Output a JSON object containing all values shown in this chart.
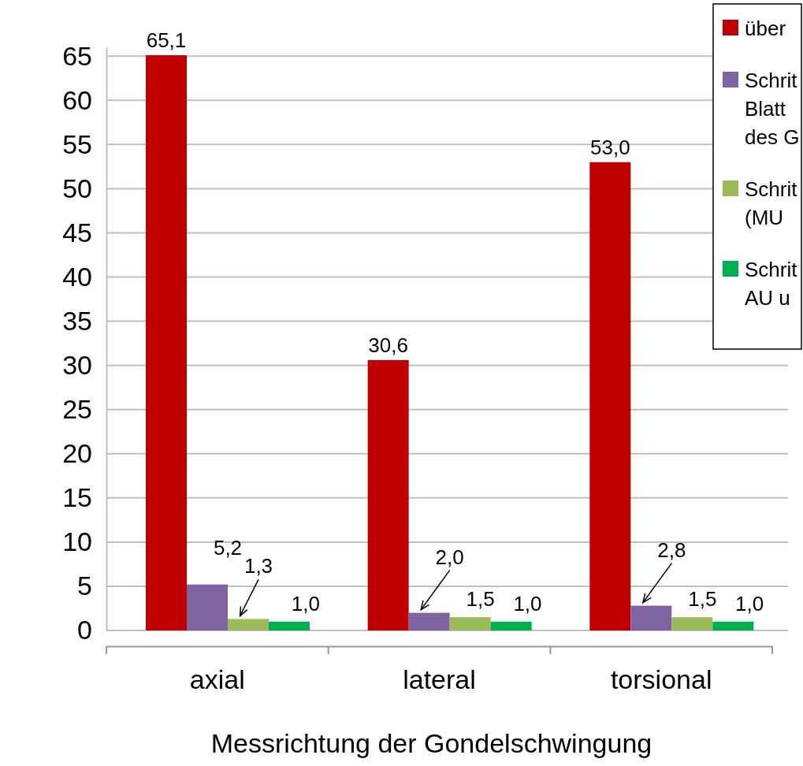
{
  "chart_data": {
    "type": "bar",
    "xlabel": "Messrichtung der Gondelschwingung",
    "categories": [
      "axial",
      "lateral",
      "torsional"
    ],
    "series": [
      {
        "name": "über",
        "color": "#c00000",
        "values": [
          65.1,
          30.6,
          53.0
        ],
        "value_labels": [
          "65,1",
          "30,6",
          "53,0"
        ]
      },
      {
        "name": "Schrit\nBlatt\ndes G",
        "color": "#8064a2",
        "values": [
          5.2,
          2.0,
          2.8
        ],
        "value_labels": [
          "5,2",
          "2,0",
          "2,8"
        ]
      },
      {
        "name": "Schrit\n(MU",
        "color": "#9bbb59",
        "values": [
          1.3,
          1.5,
          1.5
        ],
        "value_labels": [
          "1,3",
          "1,5",
          "1,5"
        ]
      },
      {
        "name": "Schrit\nAU u",
        "color": "#00b050",
        "values": [
          1.0,
          1.0,
          1.0
        ],
        "value_labels": [
          "1,0",
          "1,0",
          "1,0"
        ]
      }
    ],
    "ylim": [
      0,
      66
    ],
    "yticks": [
      0,
      5,
      10,
      15,
      20,
      25,
      30,
      35,
      40,
      45,
      50,
      55,
      60,
      65
    ],
    "grid": "y",
    "legend": "top right"
  }
}
